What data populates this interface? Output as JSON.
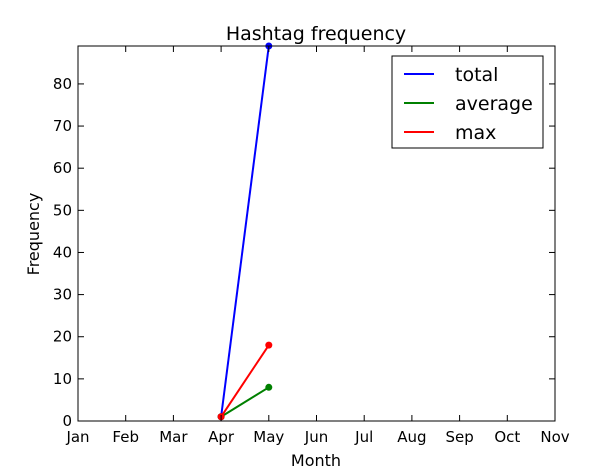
{
  "chart_data": {
    "type": "line",
    "title": "Hashtag frequency",
    "xlabel": "Month",
    "ylabel": "Frequency",
    "x_ticks": [
      "Jan",
      "Feb",
      "Mar",
      "Apr",
      "May",
      "Jun",
      "Jul",
      "Aug",
      "Sep",
      "Oct",
      "Nov"
    ],
    "xlim": [
      0,
      10
    ],
    "ylim": [
      0,
      89
    ],
    "y_ticks": [
      0,
      10,
      20,
      30,
      40,
      50,
      60,
      70,
      80
    ],
    "grid": false,
    "legend_position": "top-right",
    "series": [
      {
        "name": "total",
        "color": "#0000ff",
        "points": [
          {
            "x": "Apr",
            "y": 1
          },
          {
            "x": "May",
            "y": 89
          }
        ]
      },
      {
        "name": "average",
        "color": "#008000",
        "points": [
          {
            "x": "Apr",
            "y": 1
          },
          {
            "x": "May",
            "y": 8
          }
        ]
      },
      {
        "name": "max",
        "color": "#ff0000",
        "points": [
          {
            "x": "Apr",
            "y": 1
          },
          {
            "x": "May",
            "y": 18
          }
        ]
      }
    ]
  }
}
